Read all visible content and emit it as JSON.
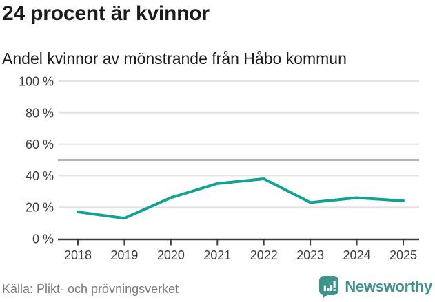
{
  "header": {
    "title": "24 procent är kvinnor",
    "subtitle": "Andel kvinnor av mönstrande från Håbo kommun"
  },
  "chart_data": {
    "type": "line",
    "title": "24 procent är kvinnor",
    "subtitle": "Andel kvinnor av mönstrande från Håbo kommun",
    "x": [
      2018,
      2019,
      2020,
      2021,
      2022,
      2023,
      2024,
      2025
    ],
    "series": [
      {
        "name": "Andel kvinnor av mönstrande",
        "values": [
          17,
          13,
          26,
          35,
          38,
          23,
          26,
          24
        ]
      }
    ],
    "ylim": [
      0,
      100
    ],
    "yticks": [
      0,
      20,
      40,
      60,
      80,
      100
    ],
    "ytick_suffix": " %",
    "reference_line": 50,
    "grid": "horizontal",
    "legend": "none"
  },
  "footer": {
    "source": "Källa: Plikt- och prövningsverket",
    "brand": "Newsworthy"
  },
  "colors": {
    "line": "#11a294",
    "grid": "#e3e3e3",
    "axis": "#3c3c3c",
    "reference": "#686868",
    "brand_teal": "#3f938d",
    "text_dark": "#1b1b19",
    "text_muted": "#7b7b7b"
  }
}
